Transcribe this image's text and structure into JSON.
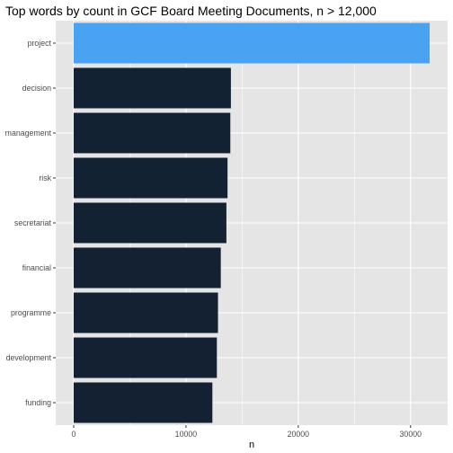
{
  "chart_data": {
    "type": "bar",
    "orientation": "horizontal",
    "title": "Top words by count in GCF Board Meeting Documents, n > 12,000",
    "xlabel": "n",
    "ylabel": "",
    "categories": [
      "project",
      "decision",
      "management",
      "risk",
      "secretariat",
      "financial",
      "programme",
      "development",
      "funding"
    ],
    "values": [
      31700,
      14000,
      13950,
      13700,
      13600,
      13100,
      12850,
      12750,
      12350
    ],
    "xlim": [
      -1600,
      33300
    ],
    "xticks": [
      0,
      10000,
      20000,
      30000
    ],
    "xtick_labels": [
      "0",
      "10000",
      "20000",
      "30000"
    ],
    "colors": {
      "panel_background": "#e5e5e5",
      "gridline": "#ffffff",
      "bar_low": "#132132",
      "bar_high": "#56b1f7",
      "highlight_bar": "#4aa3f2"
    },
    "grid": true,
    "legend": "none"
  }
}
